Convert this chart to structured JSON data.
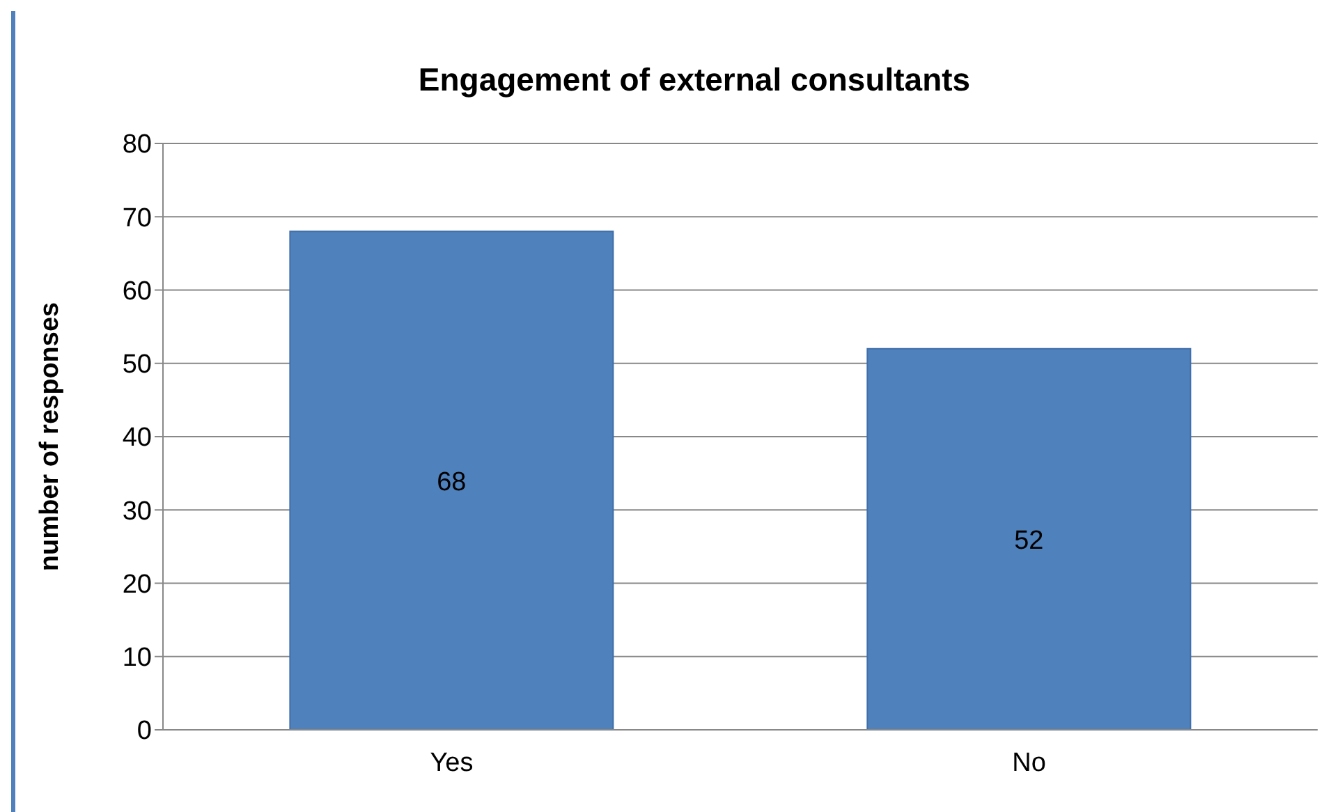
{
  "chart_data": {
    "type": "bar",
    "title": "Engagement of external consultants",
    "ylabel": "number of responses",
    "categories": [
      "Yes",
      "No"
    ],
    "values": [
      68,
      52
    ],
    "color": "#4f81bd",
    "ylim": [
      0,
      80
    ],
    "yticks": [
      0,
      10,
      20,
      30,
      40,
      50,
      60,
      70,
      80
    ],
    "grid": "y",
    "data_labels": true,
    "legend": false
  }
}
